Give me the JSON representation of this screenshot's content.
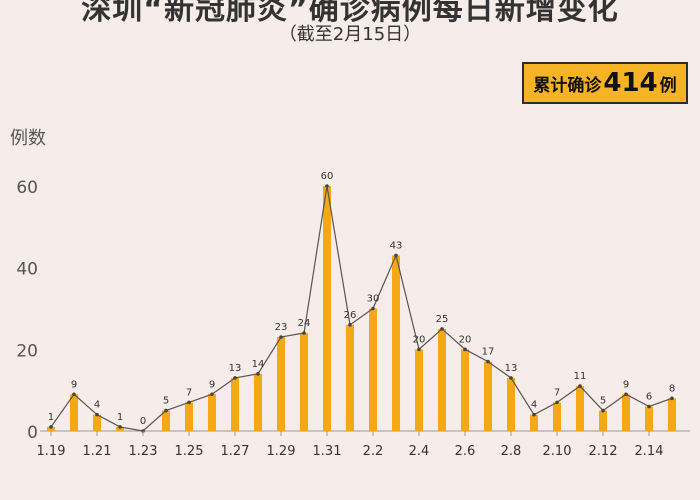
{
  "header": {
    "title": "深圳“新冠肺炎”确诊病例每日新增变化",
    "subtitle": "（截至2月15日）",
    "badge_prefix": "累计确诊",
    "badge_number": "414",
    "badge_suffix": "例"
  },
  "chart_data": {
    "type": "bar",
    "title": "深圳“新冠肺炎”确诊病例每日新增变化",
    "subtitle": "（截至2月15日）",
    "ylabel": "例数",
    "xlabel": "",
    "ylim": [
      0,
      60
    ],
    "yticks": [
      0,
      20,
      40,
      60
    ],
    "grid": false,
    "bar_color": "#f5a815",
    "line_color": "#555555",
    "categories": [
      "1.19",
      "1.20",
      "1.21",
      "1.22",
      "1.23",
      "1.24",
      "1.25",
      "1.26",
      "1.27",
      "1.28",
      "1.29",
      "1.30",
      "1.31",
      "2.1",
      "2.2",
      "2.3",
      "2.4",
      "2.5",
      "2.6",
      "2.7",
      "2.8",
      "2.9",
      "2.10",
      "2.11",
      "2.12",
      "2.13",
      "2.14",
      "2.15"
    ],
    "tick_labels": [
      "1.19",
      "1.21",
      "1.23",
      "1.25",
      "1.27",
      "1.29",
      "1.31",
      "2.2",
      "2.4",
      "2.6",
      "2.8",
      "2.10",
      "2.12",
      "2.14"
    ],
    "values": [
      1,
      9,
      4,
      1,
      0,
      5,
      7,
      9,
      13,
      14,
      23,
      24,
      60,
      26,
      30,
      43,
      20,
      25,
      20,
      17,
      13,
      4,
      7,
      11,
      5,
      9,
      6,
      8
    ]
  }
}
